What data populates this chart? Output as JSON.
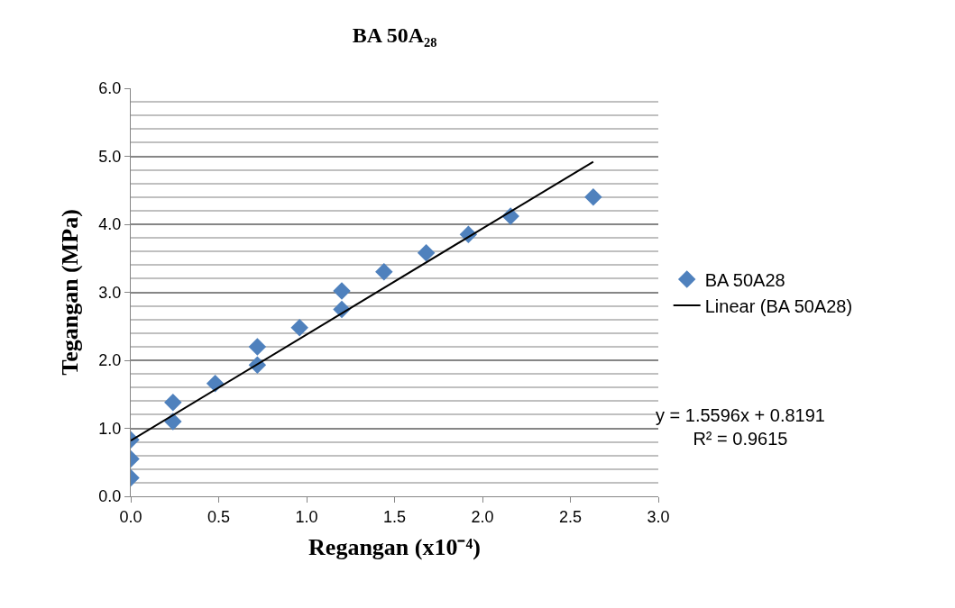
{
  "chart_data": {
    "type": "scatter",
    "title": "BA 50A₂₈",
    "xlabel": "Regangan (x10⁻⁴)",
    "ylabel": "Tegangan (MPa)",
    "series": [
      {
        "name": "BA 50A28",
        "color": "#4f81bd",
        "marker": "diamond",
        "x": [
          0,
          0,
          0,
          0.24,
          0.24,
          0.48,
          0.72,
          0.72,
          0.96,
          1.2,
          1.2,
          1.44,
          1.68,
          1.92,
          2.16,
          2.63
        ],
        "values": [
          0.83,
          0.55,
          0.27,
          1.38,
          1.1,
          1.66,
          2.2,
          1.93,
          2.48,
          3.02,
          2.75,
          3.3,
          3.58,
          3.85,
          4.12,
          4.4
        ]
      },
      {
        "name": "Linear (BA 50A28)",
        "type": "line",
        "color": "#000000",
        "marker": "none",
        "line_style": "solid",
        "x": [
          0,
          2.63
        ],
        "values": [
          0.82,
          4.92
        ]
      }
    ],
    "xlim": [
      0,
      3
    ],
    "ylim": [
      0,
      6
    ],
    "xticks": [
      {
        "value": 0,
        "label": "0.0"
      },
      {
        "value": 0.5,
        "label": "0.5"
      },
      {
        "value": 1,
        "label": "1.0"
      },
      {
        "value": 1.5,
        "label": "1.5"
      },
      {
        "value": 2,
        "label": "2.0"
      },
      {
        "value": 2.5,
        "label": "2.5"
      },
      {
        "value": 3,
        "label": "3.0"
      }
    ],
    "yticks": [
      {
        "value": 0,
        "label": "0.0"
      },
      {
        "value": 1,
        "label": "1.0"
      },
      {
        "value": 2,
        "label": "2.0"
      },
      {
        "value": 3,
        "label": "3.0"
      },
      {
        "value": 4,
        "label": "4.0"
      },
      {
        "value": 5,
        "label": "5.0"
      },
      {
        "value": 6,
        "label": "6.0"
      }
    ],
    "grid": "y",
    "legend": "right",
    "annotations": [
      "y = 1.5596x + 0.8191\nR² = 0.9615"
    ]
  }
}
